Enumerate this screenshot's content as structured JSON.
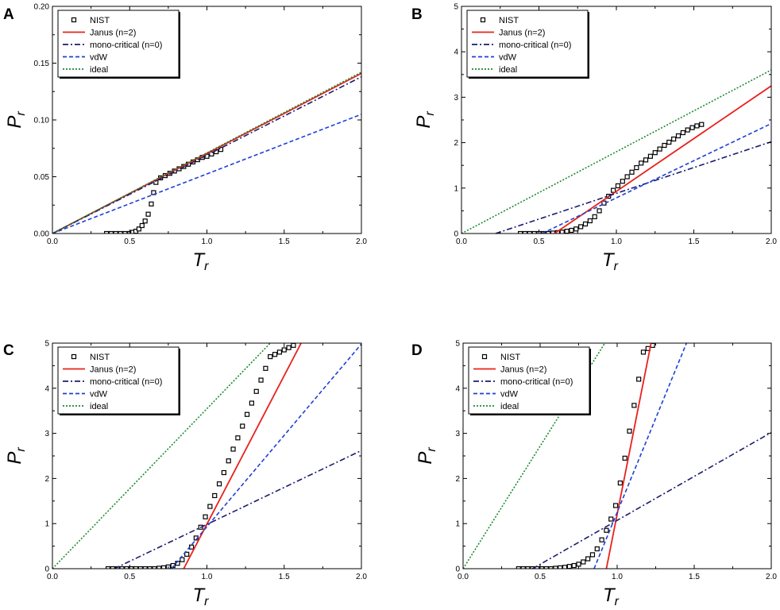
{
  "figure": {
    "colors": {
      "nist": "#000000",
      "janus": "#e8211c",
      "mono": "#1c1c6e",
      "vdw": "#1f3fd6",
      "ideal": "#1b8a2e"
    }
  },
  "chart_data": [
    {
      "panel": "A",
      "type": "line",
      "xlabel": "T",
      "xlabel_sub": "r",
      "ylabel": "P",
      "ylabel_sub": "r",
      "xlim": [
        0.0,
        2.0
      ],
      "ylim": [
        0.0,
        0.2
      ],
      "xticks": [
        "0.0",
        "0.5",
        "1.0",
        "1.5",
        "2.0"
      ],
      "yticks": [
        "0.00",
        "0.05",
        "0.10",
        "0.15",
        "0.20"
      ],
      "legend_position": "top-left",
      "series": [
        {
          "name": "NIST",
          "style": "squares",
          "x": [
            0.35,
            0.38,
            0.41,
            0.44,
            0.47,
            0.5,
            0.52,
            0.54,
            0.56,
            0.58,
            0.6,
            0.62,
            0.64,
            0.655,
            0.67,
            0.7,
            0.73,
            0.76,
            0.79,
            0.82,
            0.85,
            0.88,
            0.91,
            0.94,
            0.97,
            1.0,
            1.03,
            1.06,
            1.09
          ],
          "y": [
            0.0,
            0.0,
            0.0,
            0.0,
            0.0,
            0.0,
            0.001,
            0.002,
            0.004,
            0.007,
            0.011,
            0.017,
            0.026,
            0.036,
            0.045,
            0.049,
            0.051,
            0.053,
            0.055,
            0.057,
            0.059,
            0.061,
            0.063,
            0.065,
            0.067,
            0.068,
            0.07,
            0.072,
            0.074
          ]
        },
        {
          "name": "Janus (n=2)",
          "style": "solid",
          "x": [
            0.0,
            2.0
          ],
          "y": [
            0.0,
            0.141
          ]
        },
        {
          "name": "mono-critical (n=0)",
          "style": "dashdot",
          "x": [
            0.0,
            2.0
          ],
          "y": [
            0.0,
            0.138
          ]
        },
        {
          "name": "vdW",
          "style": "dashed",
          "x": [
            0.0,
            2.0
          ],
          "y": [
            0.0,
            0.105
          ]
        },
        {
          "name": "ideal",
          "style": "dotted",
          "x": [
            0.0,
            2.0
          ],
          "y": [
            0.0,
            0.142
          ]
        }
      ]
    },
    {
      "panel": "B",
      "type": "line",
      "xlabel": "T",
      "xlabel_sub": "r",
      "ylabel": "P",
      "ylabel_sub": "r",
      "xlim": [
        0.0,
        2.0
      ],
      "ylim": [
        0,
        5
      ],
      "xticks": [
        "0.0",
        "0.5",
        "1.0",
        "1.5",
        "2.0"
      ],
      "yticks": [
        "0",
        "1",
        "2",
        "3",
        "4",
        "5"
      ],
      "legend_position": "top-left",
      "series": [
        {
          "name": "NIST",
          "style": "squares",
          "x": [
            0.38,
            0.41,
            0.44,
            0.47,
            0.5,
            0.53,
            0.56,
            0.59,
            0.62,
            0.65,
            0.68,
            0.71,
            0.74,
            0.77,
            0.8,
            0.83,
            0.86,
            0.89,
            0.92,
            0.95,
            0.98,
            1.01,
            1.04,
            1.07,
            1.1,
            1.13,
            1.16,
            1.19,
            1.22,
            1.25,
            1.28,
            1.31,
            1.34,
            1.37,
            1.4,
            1.43,
            1.46,
            1.49,
            1.52,
            1.55
          ],
          "y": [
            0,
            0,
            0,
            0,
            0,
            0,
            0,
            0.01,
            0.02,
            0.03,
            0.05,
            0.07,
            0.1,
            0.15,
            0.21,
            0.28,
            0.37,
            0.5,
            0.67,
            0.82,
            0.95,
            1.05,
            1.15,
            1.25,
            1.35,
            1.45,
            1.55,
            1.62,
            1.7,
            1.78,
            1.86,
            1.94,
            2.01,
            2.08,
            2.15,
            2.22,
            2.28,
            2.33,
            2.37,
            2.4
          ]
        },
        {
          "name": "Janus (n=2)",
          "style": "solid",
          "x": [
            0.6,
            2.0
          ],
          "y": [
            0.0,
            3.25
          ]
        },
        {
          "name": "mono-critical (n=0)",
          "style": "dashdot",
          "x": [
            0.22,
            2.0
          ],
          "y": [
            0.0,
            2.02
          ]
        },
        {
          "name": "vdW",
          "style": "dashed",
          "x": [
            0.52,
            2.0
          ],
          "y": [
            0.0,
            2.42
          ]
        },
        {
          "name": "ideal",
          "style": "dotted",
          "x": [
            0.0,
            2.0
          ],
          "y": [
            0.0,
            3.6
          ]
        }
      ]
    },
    {
      "panel": "C",
      "type": "line",
      "xlabel": "T",
      "xlabel_sub": "r",
      "ylabel": "P",
      "ylabel_sub": "r",
      "xlim": [
        0.0,
        2.0
      ],
      "ylim": [
        0,
        5
      ],
      "xticks": [
        "0.0",
        "0.5",
        "1.0",
        "1.5",
        "2.0"
      ],
      "yticks": [
        "0",
        "1",
        "2",
        "3",
        "4",
        "5"
      ],
      "legend_position": "top-left",
      "series": [
        {
          "name": "NIST",
          "style": "squares",
          "x": [
            0.36,
            0.39,
            0.42,
            0.45,
            0.48,
            0.51,
            0.54,
            0.57,
            0.6,
            0.63,
            0.66,
            0.69,
            0.72,
            0.75,
            0.78,
            0.81,
            0.84,
            0.87,
            0.9,
            0.93,
            0.96,
            0.99,
            1.02,
            1.05,
            1.08,
            1.11,
            1.14,
            1.17,
            1.2,
            1.23,
            1.26,
            1.29,
            1.32,
            1.35,
            1.38,
            1.41,
            1.44,
            1.47,
            1.5,
            1.53,
            1.56
          ],
          "y": [
            0,
            0,
            0,
            0,
            0,
            0,
            0,
            0,
            0,
            0,
            0,
            0.01,
            0.02,
            0.04,
            0.07,
            0.12,
            0.2,
            0.32,
            0.48,
            0.68,
            0.92,
            1.15,
            1.38,
            1.62,
            1.88,
            2.13,
            2.39,
            2.65,
            2.9,
            3.16,
            3.42,
            3.67,
            3.93,
            4.18,
            4.44,
            4.7,
            4.75,
            4.8,
            4.85,
            4.9,
            4.95
          ]
        },
        {
          "name": "Janus (n=2)",
          "style": "solid",
          "x": [
            0.85,
            1.61
          ],
          "y": [
            0.0,
            5.0
          ]
        },
        {
          "name": "mono-critical (n=0)",
          "style": "dashdot",
          "x": [
            0.4,
            2.0
          ],
          "y": [
            0.0,
            2.62
          ]
        },
        {
          "name": "vdW",
          "style": "dashed",
          "x": [
            0.77,
            2.0
          ],
          "y": [
            0.0,
            4.98
          ]
        },
        {
          "name": "ideal",
          "style": "dotted",
          "x": [
            0.0,
            1.41
          ],
          "y": [
            0.0,
            5.0
          ]
        }
      ]
    },
    {
      "panel": "D",
      "type": "line",
      "xlabel": "T",
      "xlabel_sub": "r",
      "ylabel": "P",
      "ylabel_sub": "r",
      "xlim": [
        0.0,
        2.0
      ],
      "ylim": [
        0,
        5
      ],
      "xticks": [
        "0.0",
        "0.5",
        "1.0",
        "1.5",
        "2.0"
      ],
      "yticks": [
        "0",
        "1",
        "2",
        "3",
        "4",
        "5"
      ],
      "legend_position": "top-left",
      "series": [
        {
          "name": "NIST",
          "style": "squares",
          "x": [
            0.36,
            0.39,
            0.42,
            0.45,
            0.48,
            0.51,
            0.54,
            0.57,
            0.6,
            0.63,
            0.66,
            0.69,
            0.72,
            0.75,
            0.78,
            0.81,
            0.84,
            0.87,
            0.9,
            0.93,
            0.96,
            0.99,
            1.02,
            1.05,
            1.08,
            1.11,
            1.14,
            1.17,
            1.2,
            1.23
          ],
          "y": [
            0,
            0,
            0,
            0,
            0,
            0,
            0,
            0,
            0.01,
            0.02,
            0.03,
            0.05,
            0.07,
            0.1,
            0.15,
            0.22,
            0.31,
            0.44,
            0.64,
            0.85,
            1.1,
            1.4,
            1.9,
            2.45,
            3.05,
            3.62,
            4.2,
            4.8,
            4.88,
            4.95
          ]
        },
        {
          "name": "Janus (n=2)",
          "style": "solid",
          "x": [
            0.93,
            1.22
          ],
          "y": [
            0.0,
            5.0
          ]
        },
        {
          "name": "mono-critical (n=0)",
          "style": "dashdot",
          "x": [
            0.45,
            2.0
          ],
          "y": [
            0.0,
            3.02
          ]
        },
        {
          "name": "vdW",
          "style": "dashed",
          "x": [
            0.85,
            1.45
          ],
          "y": [
            0.0,
            5.0
          ]
        },
        {
          "name": "ideal",
          "style": "dotted",
          "x": [
            0.0,
            0.92
          ],
          "y": [
            0.0,
            5.0
          ]
        }
      ]
    }
  ]
}
